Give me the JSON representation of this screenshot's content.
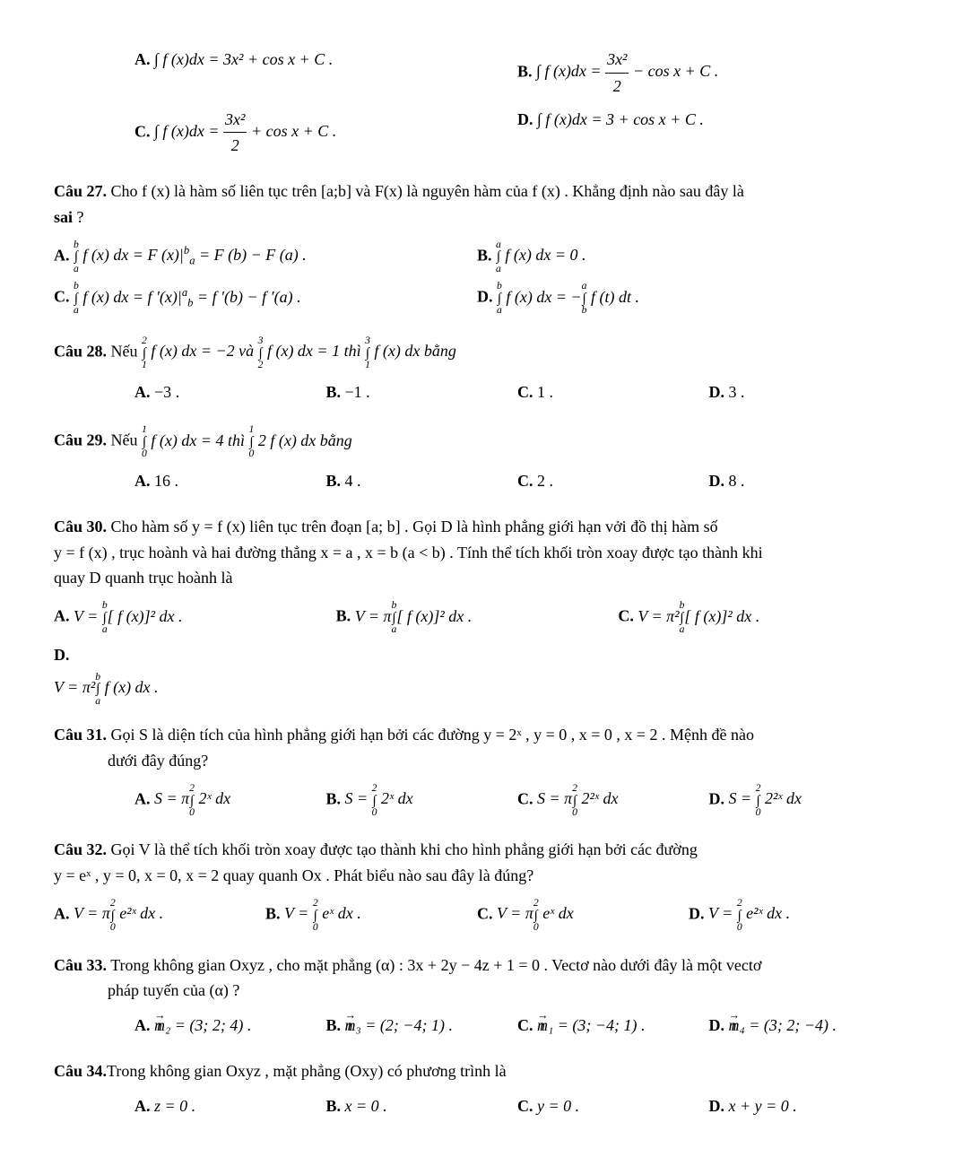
{
  "pre_options": {
    "a": "∫ f (x)dx = 3x² + cos x + C .",
    "b_pre": "∫ f (x)dx = ",
    "b_frac_num": "3x²",
    "b_frac_den": "2",
    "b_post": " − cos x + C .",
    "c_pre": "∫ f (x)dx = ",
    "c_frac_num": "3x²",
    "c_frac_den": "2",
    "c_post": " + cos x + C .",
    "d": "∫ f (x)dx = 3 + cos x + C ."
  },
  "q27": {
    "label": "Câu 27.",
    "text_1": " Cho  f (x)  là hàm số liên tục trên  [a;b]  và  F(x)  là nguyên hàm của  f (x) . Khẳng định nào sau đây là",
    "sai": "sai",
    "qmark": " ?",
    "a_lhs_int_upper": "b",
    "a_lhs_int_lower": "a",
    "a": " f (x) dx = F (x)|",
    "a_sup": "b",
    "a_sub": "a",
    "a_post": " = F (b) − F (a) .",
    "b_upper": "a",
    "b_lower": "a",
    "b": " f (x) dx = 0 .",
    "c_upper": "b",
    "c_lower": "a",
    "c": " f (x) dx = f ′(x)|",
    "c_sup": "a",
    "c_sub": "b",
    "c_post": " = f ′(b) − f ′(a) .",
    "d_upper1": "b",
    "d_lower1": "a",
    "d_mid": " f (x) dx = −",
    "d_upper2": "a",
    "d_lower2": "b",
    "d_post": " f (t) dt ."
  },
  "q28": {
    "label": "Câu 28.",
    "pre": " Nếu ",
    "u1": "2",
    "l1": "1",
    "mid1": " f (x) dx = −2  và ",
    "u2": "3",
    "l2": "2",
    "mid2": " f (x) dx = 1  thì ",
    "u3": "3",
    "l3": "1",
    "post": " f (x) dx  bằng",
    "a": "−3 .",
    "b": "−1 .",
    "c": "1 .",
    "d": "3 ."
  },
  "q29": {
    "label": "Câu 29.",
    "pre": " Nếu ",
    "u1": "1",
    "l1": "0",
    "mid": " f (x) dx = 4  thì ",
    "u2": "1",
    "l2": "0",
    "post": " 2 f (x) dx  bằng",
    "a": "16 .",
    "b": "4 .",
    "c": "2 .",
    "d": "8 ."
  },
  "q30": {
    "label": "Câu 30.",
    "line1": " Cho hàm số  y = f (x)  liên tục trên đoạn  [a; b] . Gọi  D  là hình phẳng giới hạn vởi đồ thị hàm số",
    "line2": "y = f (x) , trục hoành và hai đường thẳng  x = a ,  x = b  (a < b) . Tính thể tích khối tròn xoay được tạo thành khi",
    "line3": "quay  D  quanh trục hoành là",
    "a_pre": "V = ",
    "a_u": "b",
    "a_l": "a",
    "a_body": "[ f (x)]² dx .",
    "b_pre": "V = π",
    "b_u": "b",
    "b_l": "a",
    "b_body": "[ f (x)]² dx .",
    "c_pre": "V = π²",
    "c_u": "b",
    "c_l": "a",
    "c_body": "[ f (x)]² dx .",
    "d_pre": "V = π²",
    "d_u": "b",
    "d_l": "a",
    "d_body": " f (x) dx ."
  },
  "q31": {
    "label": "Câu 31.",
    "line1": " Gọi  S  là diện tích của hình phẳng giới hạn bởi các đường  y = 2ˣ ,  y = 0 ,  x = 0 ,  x = 2 . Mệnh đề nào",
    "line2": "dưới đây đúng?",
    "a_pre": "S = π",
    "a_u": "2",
    "a_l": "0",
    "a_body": " 2ˣ dx",
    "b_pre": "S = ",
    "b_u": "2",
    "b_l": "0",
    "b_body": " 2ˣ dx",
    "c_pre": "S = π",
    "c_u": "2",
    "c_l": "0",
    "c_body": " 2²ˣ dx",
    "d_pre": "S = ",
    "d_u": "2",
    "d_l": "0",
    "d_body": " 2²ˣ dx"
  },
  "q32": {
    "label": "Câu 32.",
    "line1": " Gọi  V  là thể tích khối tròn xoay được tạo thành khi cho hình phẳng giới hạn bởi các đường",
    "line2": "y = eˣ ,  y = 0,  x = 0,  x = 2  quay quanh  Ox . Phát biểu nào sau đây là đúng?",
    "a_pre": "V = π",
    "a_u": "2",
    "a_l": "0",
    "a_body": " e²ˣ dx .",
    "b_pre": "V = ",
    "b_u": "2",
    "b_l": "0",
    "b_body": " eˣ dx .",
    "c_pre": "V = π",
    "c_u": "2",
    "c_l": "0",
    "c_body": " eˣ dx",
    "d_pre": "V = ",
    "d_u": "2",
    "d_l": "0",
    "d_body": " e²ˣ dx ."
  },
  "q33": {
    "label": "Câu 33.",
    "line1": " Trong không gian  Oxyz , cho mặt phẳng  (α) : 3x + 2y − 4z + 1 = 0 . Vectơ nào dưới đây là một vectơ",
    "line2": "pháp tuyến của  (α) ?",
    "a": "n₂ = (3; 2; 4) .",
    "b": "n₃ = (2; −4; 1) .",
    "c": "n₁ = (3; −4; 1) .",
    "d": "n₄ = (3; 2; −4) ."
  },
  "q34": {
    "label": "Câu 34.",
    "text": "Trong không gian  Oxyz , mặt phẳng  (Oxy)  có phương trình là",
    "a": "z = 0 .",
    "b": "x = 0 .",
    "c": "y = 0 .",
    "d": "x + y = 0 ."
  },
  "labels": {
    "A": "A.",
    "B": "B.",
    "C": "C.",
    "D": "D."
  }
}
